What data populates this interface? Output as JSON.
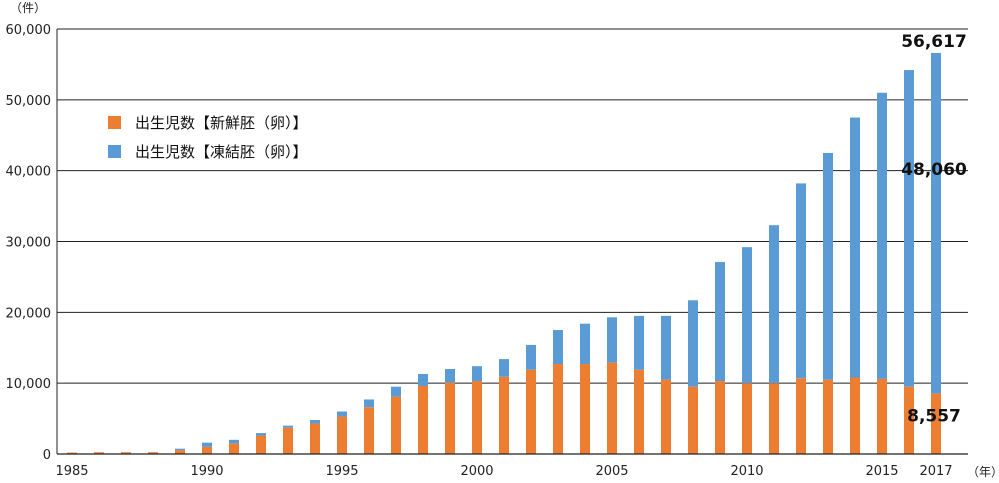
{
  "chart_data": {
    "type": "bar",
    "stacked": true,
    "y_unit_label": "（件）",
    "x_unit_label": "（年）",
    "ylim": [
      0,
      60000
    ],
    "yticks": [
      "0",
      "10,000",
      "20,000",
      "30,000",
      "40,000",
      "50,000",
      "60,000"
    ],
    "ytick_values": [
      0,
      10000,
      20000,
      30000,
      40000,
      50000,
      60000
    ],
    "xtick_labels": [
      "1985",
      "1990",
      "1995",
      "2000",
      "2005",
      "2010",
      "2015",
      "2017"
    ],
    "grid": true,
    "legend_position": "top-left",
    "categories": [
      "1985",
      "1986",
      "1987",
      "1988",
      "1989",
      "1990",
      "1991",
      "1992",
      "1993",
      "1994",
      "1995",
      "1996",
      "1997",
      "1998",
      "1999",
      "2000",
      "2001",
      "2002",
      "2003",
      "2004",
      "2005",
      "2006",
      "2007",
      "2008",
      "2009",
      "2010",
      "2011",
      "2012",
      "2013",
      "2014",
      "2015",
      "2016",
      "2017"
    ],
    "series": [
      {
        "name": "出生児数【新鮮胚（卵）】",
        "color": "#ED7D31",
        "values": [
          200,
          250,
          250,
          250,
          550,
          1000,
          1500,
          2600,
          3700,
          4300,
          5300,
          6600,
          8100,
          9600,
          10100,
          10300,
          10900,
          11900,
          12700,
          12700,
          12900,
          11900,
          10500,
          9500,
          10300,
          10000,
          10000,
          10700,
          10500,
          10800,
          10600,
          9500,
          8557
        ]
      },
      {
        "name": "出生児数【凍結胚（卵）】",
        "color": "#5B9BD5",
        "values": [
          0,
          0,
          0,
          0,
          200,
          600,
          500,
          350,
          300,
          500,
          700,
          1100,
          1400,
          1700,
          1900,
          2100,
          2500,
          3500,
          4800,
          5700,
          6400,
          7600,
          9000,
          12200,
          16800,
          19200,
          22300,
          27500,
          32000,
          36700,
          40400,
          44700,
          48060
        ]
      }
    ],
    "annotations": [
      {
        "label": "56,617",
        "category": "2017",
        "value": 56617,
        "kind": "total"
      },
      {
        "label": "48,060",
        "category": "2017",
        "value": 48060,
        "kind": "series-2"
      },
      {
        "label": "8,557",
        "category": "2017",
        "value": 8557,
        "kind": "series-1"
      }
    ]
  }
}
